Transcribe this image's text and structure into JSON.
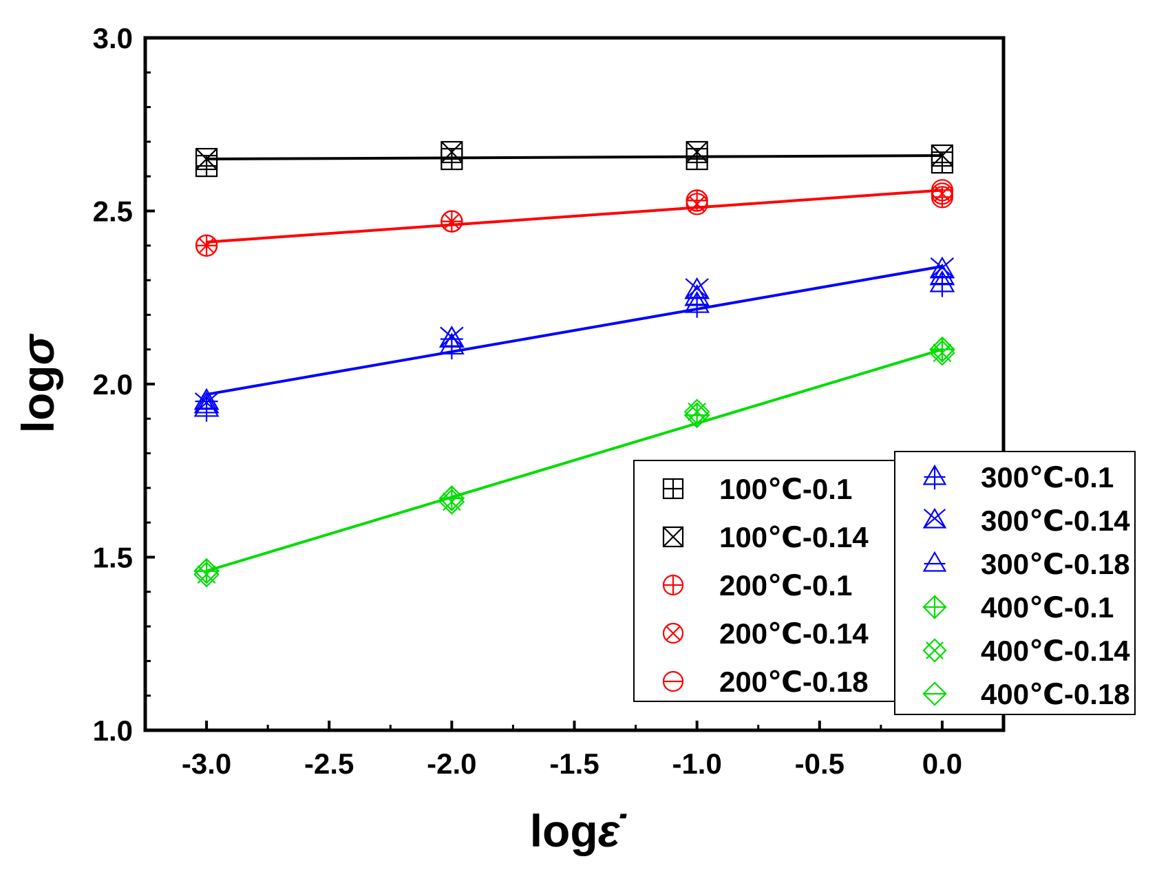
{
  "chart_data": {
    "type": "scatter",
    "title": "",
    "xlabel": "logε̇",
    "xlabel_base": "log",
    "xlabel_symbol": "ε̇",
    "ylabel": "logσ",
    "ylabel_base": "log",
    "ylabel_symbol": "σ",
    "xlim": [
      -3.25,
      0.25
    ],
    "ylim": [
      1.0,
      3.0
    ],
    "xticks": [
      -3.0,
      -2.5,
      -2.0,
      -1.5,
      -1.0,
      -0.5,
      0.0
    ],
    "xtick_labels": [
      "-3.0",
      "-2.5",
      "-2.0",
      "-1.5",
      "-1.0",
      "-0.5",
      "0.0"
    ],
    "yticks": [
      1.0,
      1.5,
      2.0,
      2.5,
      3.0
    ],
    "ytick_labels": [
      "1.0",
      "1.5",
      "2.0",
      "2.5",
      "3.0"
    ],
    "grid": false,
    "legend_placement": "bottom-right, two columns",
    "x": [
      -3.0,
      -2.0,
      -1.0,
      0.0
    ],
    "series": [
      {
        "name": "100℃-0.1",
        "color": "#000000",
        "marker": "square-plus",
        "values": [
          2.63,
          2.65,
          2.65,
          2.64
        ]
      },
      {
        "name": "100℃-0.14",
        "color": "#000000",
        "marker": "square-x",
        "values": [
          2.65,
          2.67,
          2.67,
          2.66
        ]
      },
      {
        "name": "200℃-0.1",
        "color": "#ff0000",
        "marker": "circle-plus",
        "values": [
          2.4,
          2.47,
          2.53,
          2.54
        ]
      },
      {
        "name": "200℃-0.14",
        "color": "#ff0000",
        "marker": "circle-x",
        "values": [
          2.4,
          2.47,
          2.52,
          2.55
        ]
      },
      {
        "name": "200℃-0.18",
        "color": "#ff0000",
        "marker": "circle-minus",
        "values": [
          2.4,
          2.47,
          2.53,
          2.56
        ]
      },
      {
        "name": "300℃-0.1",
        "color": "#0000ff",
        "marker": "triangle-plus",
        "values": [
          1.93,
          2.11,
          2.23,
          2.29
        ]
      },
      {
        "name": "300℃-0.14",
        "color": "#0000ff",
        "marker": "triangle-x",
        "values": [
          1.94,
          2.13,
          2.27,
          2.33
        ]
      },
      {
        "name": "300℃-0.18",
        "color": "#0000ff",
        "marker": "triangle-minus",
        "values": [
          1.95,
          2.13,
          2.25,
          2.31
        ]
      },
      {
        "name": "400℃-0.1",
        "color": "#00dd00",
        "marker": "diamond-plus",
        "values": [
          1.46,
          1.67,
          1.91,
          2.1
        ]
      },
      {
        "name": "400℃-0.14",
        "color": "#00dd00",
        "marker": "diamond-x",
        "values": [
          1.45,
          1.66,
          1.92,
          2.09
        ]
      },
      {
        "name": "400℃-0.18",
        "color": "#00dd00",
        "marker": "diamond-minus",
        "values": [
          1.46,
          1.67,
          1.91,
          2.1
        ]
      }
    ],
    "fit_lines": [
      {
        "name": "100℃ fit",
        "color": "#000000",
        "x": [
          -3.0,
          0.0
        ],
        "y": [
          2.65,
          2.66
        ]
      },
      {
        "name": "200℃ fit",
        "color": "#ff0000",
        "x": [
          -3.0,
          0.0
        ],
        "y": [
          2.41,
          2.56
        ]
      },
      {
        "name": "300℃ fit",
        "color": "#0000ff",
        "x": [
          -3.0,
          0.0
        ],
        "y": [
          1.97,
          2.34
        ]
      },
      {
        "name": "400℃ fit",
        "color": "#00dd00",
        "x": [
          -3.0,
          0.0
        ],
        "y": [
          1.46,
          2.1
        ]
      }
    ]
  }
}
